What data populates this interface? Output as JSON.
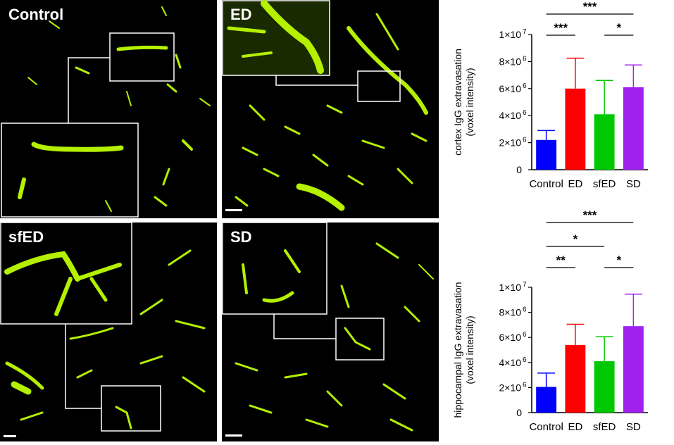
{
  "panels": [
    {
      "label": "Control"
    },
    {
      "label": "ED"
    },
    {
      "label": "sfED"
    },
    {
      "label": "SD"
    }
  ],
  "colors": {
    "vessel": "#b4f000",
    "vessel_bright": "#e6ff3c",
    "bars": [
      "#0000ff",
      "#ff0000",
      "#00c800",
      "#a020f0"
    ]
  },
  "chart_data": [
    {
      "type": "bar",
      "categories": [
        "Control",
        "ED",
        "sfED",
        "SD"
      ],
      "values": [
        2200000,
        6000000,
        4100000,
        6100000
      ],
      "errors": [
        700000,
        2250000,
        2500000,
        1650000
      ],
      "ylabel_line1": "cortex IgG extravasation",
      "ylabel_line2": "(voxel intensity)",
      "ylim": [
        0,
        10000000
      ],
      "ytick_labels": [
        "0",
        "2×10",
        "4×10",
        "6×10",
        "8×10",
        "1×10"
      ],
      "ytick_exps": [
        "",
        "6",
        "6",
        "6",
        "6",
        "7"
      ],
      "significance": [
        {
          "from": 0,
          "to": 3,
          "label": "***"
        },
        {
          "from": 0,
          "to": 1,
          "label": "***"
        },
        {
          "from": 2,
          "to": 3,
          "label": "*"
        }
      ]
    },
    {
      "type": "bar",
      "categories": [
        "Control",
        "ED",
        "sfED",
        "SD"
      ],
      "values": [
        2050000,
        5400000,
        4100000,
        6900000
      ],
      "errors": [
        1100000,
        1650000,
        1950000,
        2550000
      ],
      "ylabel_line1": "hippocampal IgG extravasation",
      "ylabel_line2": "(voxel intensity)",
      "ylim": [
        0,
        10000000
      ],
      "ytick_labels": [
        "0",
        "2×10",
        "4×10",
        "6×10",
        "8×10",
        "1×10"
      ],
      "ytick_exps": [
        "",
        "6",
        "6",
        "6",
        "6",
        "7"
      ],
      "significance": [
        {
          "from": 0,
          "to": 3,
          "label": "***"
        },
        {
          "from": 0,
          "to": 2,
          "label": "*"
        },
        {
          "from": 0,
          "to": 1,
          "label": "**"
        },
        {
          "from": 2,
          "to": 3,
          "label": "*"
        }
      ]
    }
  ]
}
